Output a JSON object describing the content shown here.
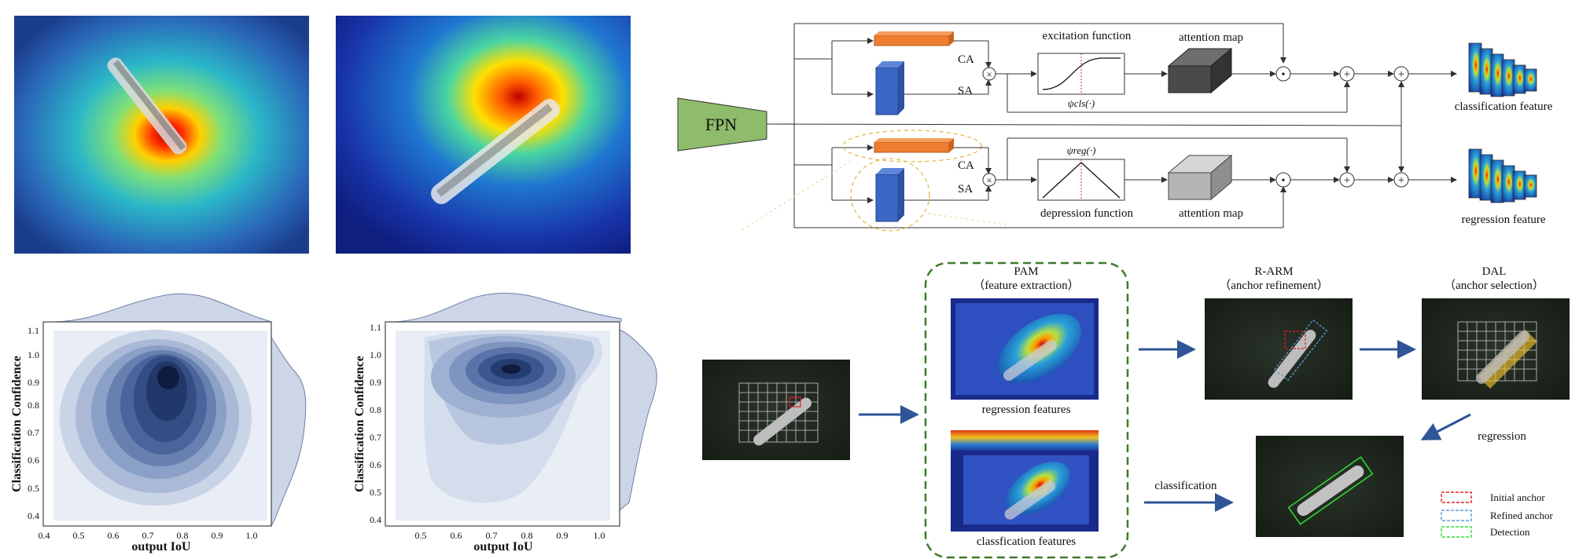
{
  "heatmaps": [
    {
      "name": "heatmap-left",
      "colormap": "jet"
    },
    {
      "name": "heatmap-right",
      "colormap": "jet"
    }
  ],
  "kde_plots": [
    {
      "xlabel": "output IoU",
      "ylabel": "Classification Confidence",
      "xticks": [
        "0.4",
        "0.5",
        "0.6",
        "0.7",
        "0.8",
        "0.9",
        "1.0"
      ],
      "yticks": [
        "0.4",
        "0.5",
        "0.6",
        "0.7",
        "0.8",
        "0.9",
        "1.0",
        "1.1"
      ]
    },
    {
      "xlabel": "output IoU",
      "ylabel": "Classification Confidence",
      "xticks": [
        "0.5",
        "0.6",
        "0.7",
        "0.8",
        "0.9",
        "1.0"
      ],
      "yticks": [
        "0.4",
        "0.5",
        "0.6",
        "0.7",
        "0.8",
        "0.9",
        "1.0",
        "1.1"
      ]
    }
  ],
  "network": {
    "fpn": "FPN",
    "ca": "CA",
    "sa": "SA",
    "excitation": "excitation function",
    "depression": "depression function",
    "attention_map": "attention map",
    "psi_cls": "ψcls(·)",
    "psi_reg": "ψreg(·)",
    "multiply": "×",
    "dot": "•",
    "plus": "+",
    "classification_feature": "classification feature",
    "regression_feature": "regression feature"
  },
  "pipeline": {
    "pam_title": "PAM",
    "pam_subtitle": "（feature extraction）",
    "regression_features": "regression features",
    "classification_features": "classfication features",
    "rarm_title": "R-ARM",
    "rarm_subtitle": "（anchor refinement）",
    "dal_title": "DAL",
    "dal_subtitle": "（anchor selection）",
    "regression": "regression",
    "classification": "classification"
  },
  "legend": [
    {
      "label": "Initial anchor",
      "color": "#e02020"
    },
    {
      "label": "Refined anchor",
      "color": "#5b9bd5"
    },
    {
      "label": "Detection",
      "color": "#33dd33"
    }
  ],
  "colors": {
    "fpn": "#8fbc6b",
    "ca": "#ed7d31",
    "sa": "#3a67c4",
    "kde": "#1f3a6b",
    "pam_border": "#3d7a2a",
    "arrow": "#2f5597"
  }
}
